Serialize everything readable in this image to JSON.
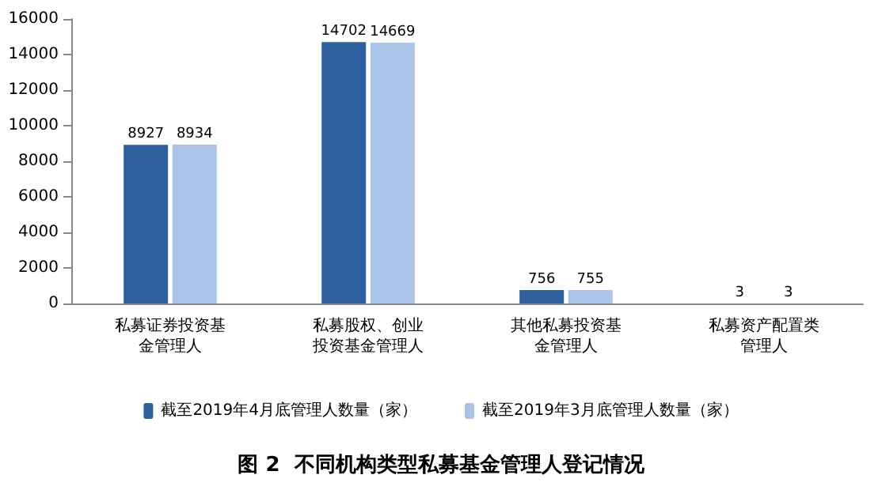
{
  "chart_data": {
    "type": "bar",
    "title": "图 2  不同机构类型私募基金管理人登记情况",
    "categories": [
      "私募证券投资基金管理人",
      "私募股权、创业投资基金管理人",
      "其他私募投资基金管理人",
      "私募资产配置类管理人"
    ],
    "series": [
      {
        "name": "截至2019年4月底管理人数量（家）",
        "color": "#2e5f9e",
        "values": [
          8927,
          14702,
          756,
          3
        ]
      },
      {
        "name": "截至2019年3月底管理人数量（家）",
        "color": "#a9c4e8",
        "values": [
          8934,
          14669,
          755,
          3
        ]
      }
    ],
    "ylim": [
      0,
      16000
    ],
    "yticks": [
      0,
      2000,
      4000,
      6000,
      8000,
      10000,
      12000,
      14000,
      16000
    ],
    "grid": false,
    "legend": "bottom",
    "data_labels": true
  }
}
